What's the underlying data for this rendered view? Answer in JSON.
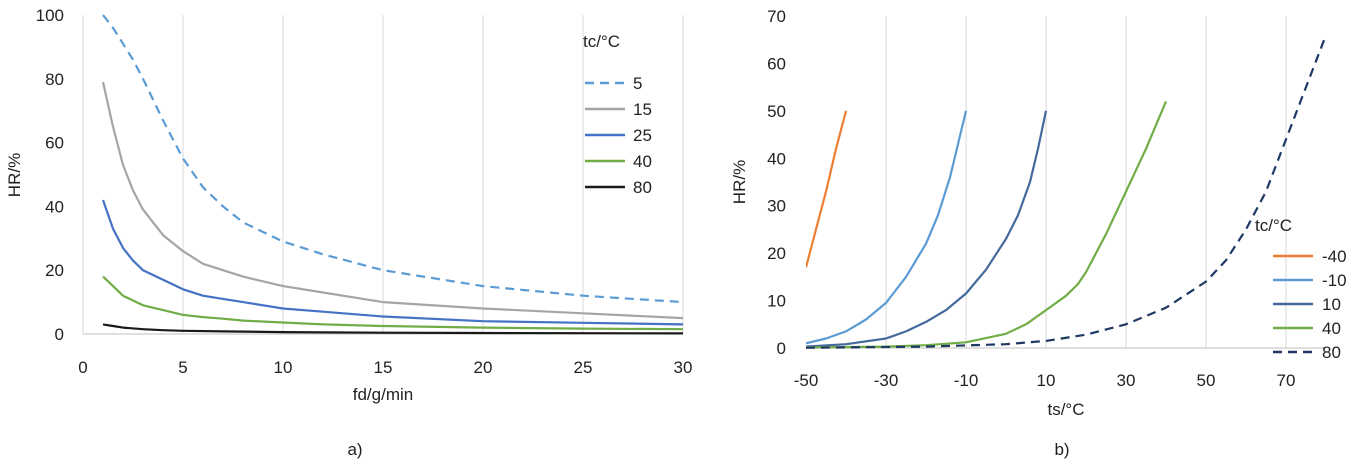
{
  "chart_data": [
    {
      "type": "line",
      "panel_label": "a)",
      "xlabel": "fd/g/min",
      "ylabel": "HR/%",
      "xlim": [
        0,
        30
      ],
      "ylim": [
        0,
        100
      ],
      "xticks": [
        0,
        5,
        10,
        15,
        20,
        25,
        30
      ],
      "yticks": [
        0,
        20,
        40,
        60,
        80,
        100
      ],
      "grid": "vertical",
      "legend_title": "tc/°C",
      "legend_placement": "top-right",
      "series": [
        {
          "name": "5",
          "color": "#5b9bd5",
          "dash": true,
          "x": [
            1,
            1.5,
            2,
            2.5,
            3,
            4,
            5,
            6,
            7,
            8,
            10,
            12,
            15,
            20,
            25,
            30
          ],
          "y": [
            100,
            96,
            91,
            86,
            80,
            67,
            55,
            46,
            40,
            35,
            29,
            25,
            20,
            15,
            12,
            10
          ]
        },
        {
          "name": "15",
          "color": "#a5a5a5",
          "dash": false,
          "x": [
            1,
            1.5,
            2,
            2.5,
            3,
            4,
            5,
            6,
            7,
            8,
            10,
            12,
            15,
            20,
            25,
            30
          ],
          "y": [
            79,
            65,
            53,
            45,
            39,
            31,
            26,
            22,
            20,
            18,
            15,
            13,
            10,
            8,
            6.5,
            5
          ]
        },
        {
          "name": "25",
          "color": "#4472c4",
          "dash": false,
          "x": [
            1,
            1.5,
            2,
            2.5,
            3,
            4,
            5,
            6,
            7,
            8,
            10,
            12,
            15,
            20,
            25,
            30
          ],
          "y": [
            42,
            33,
            27,
            23,
            20,
            17,
            14,
            12,
            11,
            10,
            8,
            7,
            5.5,
            4,
            3.5,
            3
          ]
        },
        {
          "name": "40",
          "color": "#70ad47",
          "dash": false,
          "x": [
            1,
            1.5,
            2,
            2.5,
            3,
            4,
            5,
            6,
            7,
            8,
            10,
            12,
            15,
            20,
            25,
            30
          ],
          "y": [
            18,
            15,
            12,
            10.5,
            9,
            7.5,
            6,
            5.3,
            4.8,
            4.2,
            3.6,
            3,
            2.5,
            2,
            1.7,
            1.5
          ]
        },
        {
          "name": "80",
          "color": "#1a1a1a",
          "dash": false,
          "x": [
            1,
            1.5,
            2,
            3,
            4,
            5,
            7,
            10,
            15,
            20,
            25,
            30
          ],
          "y": [
            3,
            2.5,
            2,
            1.5,
            1.2,
            1,
            0.8,
            0.6,
            0.4,
            0.3,
            0.25,
            0.2
          ]
        }
      ]
    },
    {
      "type": "line",
      "panel_label": "b)",
      "xlabel": "ts/°C",
      "ylabel": "HR/%",
      "xlim": [
        -50,
        80
      ],
      "ylim": [
        0,
        70
      ],
      "xticks": [
        -50,
        -30,
        -10,
        10,
        30,
        50,
        70
      ],
      "yticks": [
        0,
        10,
        20,
        30,
        40,
        50,
        60,
        70
      ],
      "grid": "vertical",
      "legend_title": "tc/°C",
      "legend_placement": "right",
      "series": [
        {
          "name": "-40",
          "color": "#ed7d31",
          "dash": false,
          "x": [
            -50,
            -47.5,
            -45,
            -42.5,
            -40
          ],
          "y": [
            17,
            25,
            33,
            42,
            50
          ]
        },
        {
          "name": "-10",
          "color": "#5b9bd5",
          "dash": false,
          "x": [
            -50,
            -45,
            -40,
            -35,
            -30,
            -25,
            -20,
            -17,
            -14,
            -12,
            -10
          ],
          "y": [
            1,
            2,
            3.5,
            6,
            9.5,
            15,
            22,
            28,
            36,
            43,
            50
          ]
        },
        {
          "name": "10",
          "color": "#44699d",
          "dash": false,
          "x": [
            -50,
            -40,
            -30,
            -25,
            -20,
            -15,
            -10,
            -5,
            0,
            3,
            6,
            8,
            10
          ],
          "y": [
            0.3,
            0.8,
            2,
            3.5,
            5.5,
            8,
            11.5,
            16.5,
            23,
            28,
            35,
            42,
            50
          ]
        },
        {
          "name": "40",
          "color": "#70ad47",
          "dash": false,
          "x": [
            -50,
            -30,
            -20,
            -10,
            0,
            5,
            10,
            15,
            18,
            20,
            25,
            30,
            35,
            40
          ],
          "y": [
            0.1,
            0.3,
            0.6,
            1.2,
            3,
            5,
            8,
            11,
            13.5,
            16,
            24,
            33,
            42,
            52
          ]
        },
        {
          "name": "80",
          "color": "#1f3864",
          "dash": true,
          "x": [
            -50,
            -20,
            0,
            10,
            20,
            30,
            40,
            50,
            55,
            60,
            65,
            70,
            75,
            80
          ],
          "y": [
            0.05,
            0.3,
            0.8,
            1.5,
            2.8,
            5,
            8.5,
            14,
            18.5,
            25,
            33,
            44,
            55,
            66
          ]
        }
      ]
    }
  ]
}
